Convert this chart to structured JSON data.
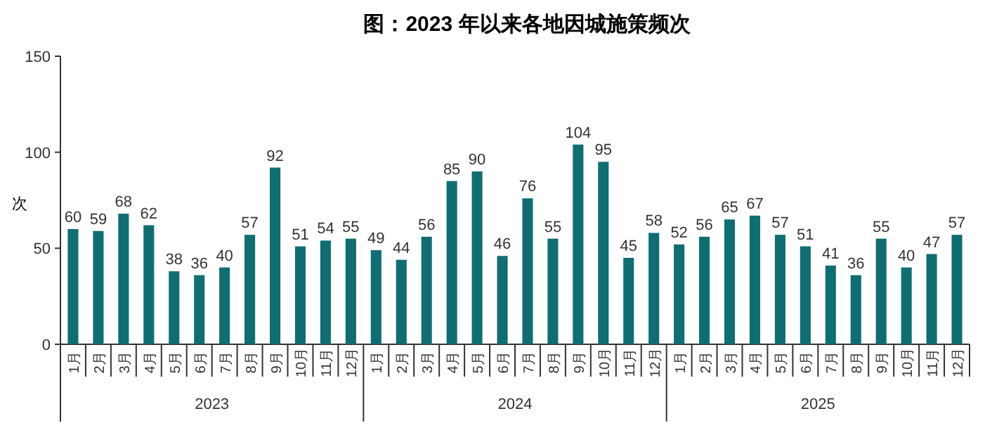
{
  "chart_data": {
    "type": "bar",
    "title": "图：2023 年以来各地因城施策频次",
    "ylabel": "次",
    "categories": [
      "1月",
      "2月",
      "3月",
      "4月",
      "5月",
      "6月",
      "7月",
      "8月",
      "9月",
      "10月",
      "11月",
      "12月",
      "1月",
      "2月",
      "3月",
      "4月",
      "5月",
      "6月",
      "7月",
      "8月",
      "9月",
      "10月",
      "11月",
      "12月",
      "1月",
      "2月",
      "3月",
      "4月",
      "5月",
      "6月",
      "7月",
      "8月",
      "9月",
      "10月",
      "11月",
      "12月"
    ],
    "values": [
      60,
      59,
      68,
      62,
      38,
      36,
      40,
      57,
      92,
      51,
      54,
      55,
      49,
      44,
      56,
      85,
      90,
      46,
      76,
      55,
      104,
      95,
      45,
      58,
      52,
      56,
      65,
      67,
      57,
      51,
      41,
      36,
      55,
      40,
      47,
      57
    ],
    "color": "#0f6e72",
    "ylim": [
      0,
      150
    ],
    "yticks": [
      0,
      50,
      100,
      150
    ],
    "data_labels": true,
    "grid": false,
    "annotations": [
      "2023",
      "2024",
      "2025"
    ]
  }
}
